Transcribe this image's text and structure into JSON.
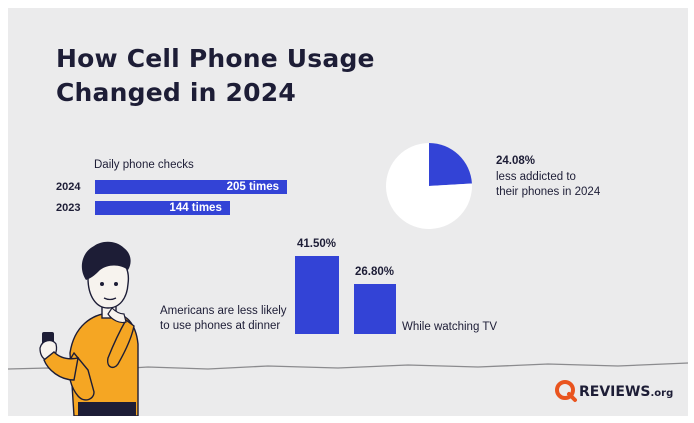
{
  "title_line1": "How Cell Phone Usage",
  "title_line2": "Changed in 2024",
  "colors": {
    "bar": "#3343d6",
    "background": "#ebebec",
    "text": "#1d1d36",
    "brand": "#e9541f",
    "figure_shirt": "#f5a623"
  },
  "chart_data": [
    {
      "type": "bar",
      "orientation": "horizontal",
      "title": "Daily phone checks",
      "categories": [
        "2024",
        "2023"
      ],
      "values": [
        205,
        144
      ],
      "value_labels": [
        "205 times",
        "144 times"
      ],
      "xlim": [
        0,
        205
      ]
    },
    {
      "type": "pie",
      "slices": [
        {
          "label": "less addicted to their phones in 2024",
          "value": 24.08,
          "value_label": "24.08%",
          "color": "#3343d6"
        },
        {
          "value": 75.92,
          "color": "#ffffff"
        }
      ],
      "annotation": {
        "line1": "less addicted to",
        "line2": "their phones in 2024"
      }
    },
    {
      "type": "bar",
      "orientation": "vertical",
      "categories": [
        "Americans are less likely to use phones at dinner",
        "While watching TV"
      ],
      "category_lines": [
        [
          "Americans are less likely",
          "to use phones at dinner"
        ],
        [
          "While watching TV"
        ]
      ],
      "values": [
        41.5,
        26.8
      ],
      "value_labels": [
        "41.50%",
        "26.80%"
      ],
      "ylim": [
        0,
        41.5
      ]
    }
  ],
  "brand": {
    "name": "REVIEWS",
    "suffix": ".org",
    "logo_icon": "q-logo-icon"
  },
  "figure": {
    "icon": "person-with-phone-icon"
  }
}
